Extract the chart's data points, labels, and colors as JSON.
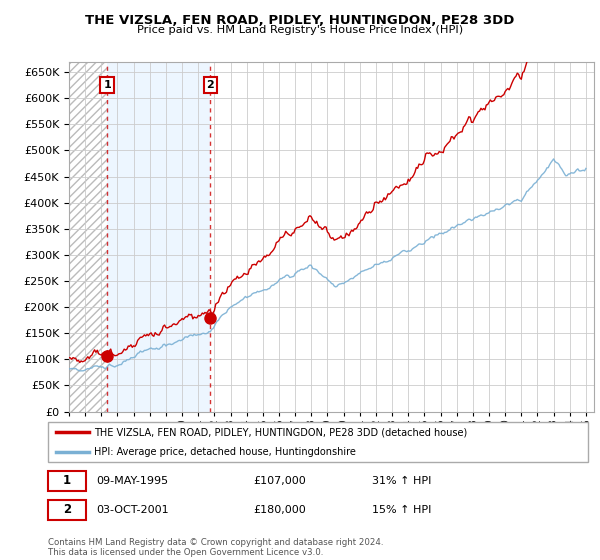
{
  "title": "THE VIZSLA, FEN ROAD, PIDLEY, HUNTINGDON, PE28 3DD",
  "subtitle": "Price paid vs. HM Land Registry's House Price Index (HPI)",
  "ylim": [
    0,
    670000
  ],
  "yticks": [
    0,
    50000,
    100000,
    150000,
    200000,
    250000,
    300000,
    350000,
    400000,
    450000,
    500000,
    550000,
    600000,
    650000
  ],
  "legend_line1": "THE VIZSLA, FEN ROAD, PIDLEY, HUNTINGDON, PE28 3DD (detached house)",
  "legend_line2": "HPI: Average price, detached house, Huntingdonshire",
  "sale1_year": 1995.36,
  "sale1_value": 107000,
  "sale2_year": 2001.75,
  "sale2_value": 180000,
  "sale1_date": "09-MAY-1995",
  "sale1_price": "£107,000",
  "sale1_hpi": "31% ↑ HPI",
  "sale2_date": "03-OCT-2001",
  "sale2_price": "£180,000",
  "sale2_hpi": "15% ↑ HPI",
  "red_line_color": "#cc0000",
  "blue_line_color": "#7ab0d4",
  "hatch_bg_color": "#e8e8e8",
  "between_fill_color": "#ddeeff",
  "copyright_text": "Contains HM Land Registry data © Crown copyright and database right 2024.\nThis data is licensed under the Open Government Licence v3.0."
}
